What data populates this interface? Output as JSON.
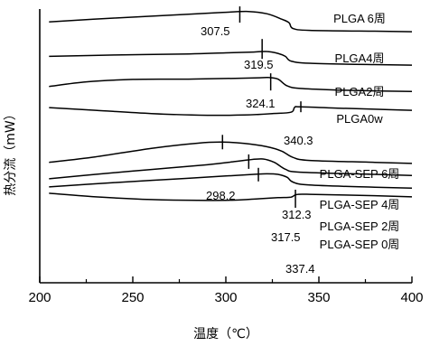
{
  "chart_data": {
    "type": "line",
    "title": "",
    "xlabel": "温度（℃）",
    "ylabel": "热分流（mW）",
    "xlim": [
      200,
      400
    ],
    "xticks": [
      "200",
      "250",
      "300",
      "350",
      "400"
    ],
    "grid": false,
    "series": [
      {
        "name": "PLGA 6周",
        "tg": 307.5,
        "tg_label": "307.5",
        "x": [
          205,
          240,
          280,
          300,
          312,
          322,
          330,
          334,
          336,
          345,
          380,
          400
        ],
        "y": [
          0.953,
          0.967,
          0.981,
          0.988,
          0.991,
          0.983,
          0.963,
          0.95,
          0.929,
          0.922,
          0.919,
          0.917
        ]
      },
      {
        "name": "PLGA4周",
        "tg": 319.5,
        "tg_label": "319.5",
        "x": [
          205,
          240,
          280,
          300,
          315,
          322,
          328,
          332,
          335,
          345,
          380,
          400
        ],
        "y": [
          0.827,
          0.832,
          0.836,
          0.84,
          0.843,
          0.845,
          0.838,
          0.827,
          0.81,
          0.802,
          0.797,
          0.795
        ]
      },
      {
        "name": "PLGA2周",
        "tg": 324.1,
        "tg_label": "324.1",
        "x": [
          205,
          225,
          250,
          280,
          305,
          318,
          323,
          328,
          333,
          340,
          360,
          380,
          400
        ],
        "y": [
          0.717,
          0.734,
          0.743,
          0.744,
          0.747,
          0.749,
          0.75,
          0.744,
          0.719,
          0.71,
          0.704,
          0.701,
          0.699
        ]
      },
      {
        "name": "PLGA0w",
        "tg": 340.3,
        "tg_label": "340.3",
        "x": [
          205,
          230,
          260,
          290,
          310,
          325,
          335,
          337,
          340,
          360,
          380,
          400
        ],
        "y": [
          0.64,
          0.63,
          0.618,
          0.612,
          0.613,
          0.618,
          0.623,
          0.641,
          0.643,
          0.638,
          0.634,
          0.63
        ]
      },
      {
        "name": "PLGA-SEP 6周",
        "tg": 298.2,
        "tg_label": "298.2",
        "x": [
          205,
          230,
          260,
          285,
          298,
          310,
          322,
          330,
          336,
          345,
          380,
          400
        ],
        "y": [
          0.44,
          0.46,
          0.491,
          0.51,
          0.514,
          0.509,
          0.497,
          0.481,
          0.458,
          0.447,
          0.44,
          0.436
        ]
      },
      {
        "name": "PLGA-SEP 4周",
        "tg": 312.3,
        "tg_label": "312.3",
        "x": [
          205,
          230,
          260,
          290,
          305,
          312,
          320,
          326,
          332,
          340,
          380,
          400
        ],
        "y": [
          0.38,
          0.396,
          0.414,
          0.431,
          0.443,
          0.449,
          0.452,
          0.44,
          0.415,
          0.404,
          0.396,
          0.392
        ]
      },
      {
        "name": "PLGA-SEP 2周",
        "tg": 317.5,
        "tg_label": "317.5",
        "x": [
          205,
          240,
          270,
          300,
          315,
          322,
          328,
          333,
          336,
          345,
          380,
          400
        ],
        "y": [
          0.35,
          0.366,
          0.378,
          0.39,
          0.396,
          0.398,
          0.396,
          0.385,
          0.368,
          0.357,
          0.349,
          0.346
        ]
      },
      {
        "name": "PLGA-SEP 0周",
        "tg": 337.4,
        "tg_label": "337.4",
        "x": [
          205,
          230,
          260,
          285,
          305,
          318,
          328,
          335,
          338,
          345,
          380,
          400
        ],
        "y": [
          0.327,
          0.314,
          0.304,
          0.301,
          0.302,
          0.307,
          0.311,
          0.313,
          0.322,
          0.323,
          0.318,
          0.314
        ]
      }
    ]
  }
}
